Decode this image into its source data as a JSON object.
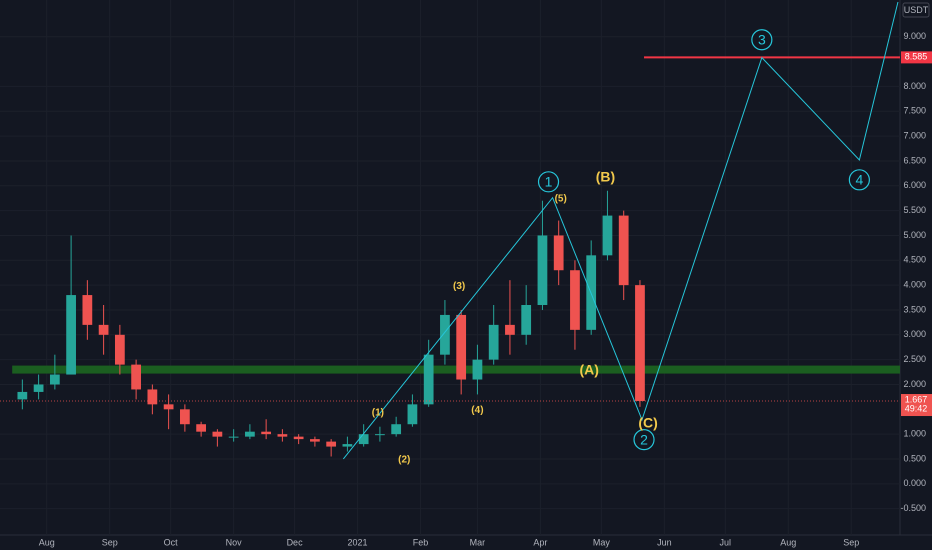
{
  "chart_data": {
    "type": "candlestick",
    "unit": "USDT",
    "up_color": "#26a69a",
    "down_color": "#ef5350",
    "grid": true,
    "xlim": [
      -23,
      420
    ],
    "ylim": [
      -1.03,
      9.74
    ],
    "xticks": [
      {
        "value": 0,
        "label": "Aug"
      },
      {
        "value": 31,
        "label": "Sep"
      },
      {
        "value": 61,
        "label": "Oct"
      },
      {
        "value": 92,
        "label": "Nov"
      },
      {
        "value": 122,
        "label": "Dec"
      },
      {
        "value": 153,
        "label": "2021"
      },
      {
        "value": 184,
        "label": "Feb"
      },
      {
        "value": 212,
        "label": "Mar"
      },
      {
        "value": 243,
        "label": "Apr"
      },
      {
        "value": 273,
        "label": "May"
      },
      {
        "value": 304,
        "label": "Jun"
      },
      {
        "value": 334,
        "label": "Jul"
      },
      {
        "value": 365,
        "label": "Aug"
      },
      {
        "value": 396,
        "label": "Sep"
      }
    ],
    "yticks": [
      {
        "value": 9,
        "label": "9.000"
      },
      {
        "value": 8,
        "label": "8.000"
      },
      {
        "value": 7.5,
        "label": "7.500"
      },
      {
        "value": 7,
        "label": "7.000"
      },
      {
        "value": 6.5,
        "label": "6.500"
      },
      {
        "value": 6,
        "label": "6.000"
      },
      {
        "value": 5.5,
        "label": "5.500"
      },
      {
        "value": 5,
        "label": "5.000"
      },
      {
        "value": 4.5,
        "label": "4.500"
      },
      {
        "value": 4,
        "label": "4.000"
      },
      {
        "value": 3.5,
        "label": "3.500"
      },
      {
        "value": 3,
        "label": "3.000"
      },
      {
        "value": 2.5,
        "label": "2.500"
      },
      {
        "value": 2,
        "label": "2.000"
      },
      {
        "value": 1,
        "label": "1.000"
      },
      {
        "value": 0.5,
        "label": "0.500"
      },
      {
        "value": 0,
        "label": "0.000"
      },
      {
        "value": -0.5,
        "label": "-0.500"
      }
    ],
    "x": [
      -12,
      -4,
      4,
      12,
      20,
      28,
      36,
      44,
      52,
      60,
      68,
      76,
      84,
      92,
      100,
      108,
      116,
      124,
      132,
      140,
      148,
      156,
      164,
      172,
      180,
      188,
      196,
      204,
      212,
      220,
      228,
      236,
      244,
      252,
      260,
      268,
      276,
      284,
      292
    ],
    "open": [
      1.7,
      1.85,
      2.0,
      2.2,
      3.8,
      3.2,
      3.0,
      2.4,
      1.9,
      1.6,
      1.5,
      1.2,
      1.05,
      0.95,
      0.95,
      1.05,
      1.0,
      0.95,
      0.9,
      0.85,
      0.75,
      0.8,
      1.0,
      1.0,
      1.2,
      1.6,
      2.6,
      3.4,
      2.1,
      2.5,
      3.2,
      3.0,
      3.6,
      5.0,
      4.3,
      3.1,
      4.6,
      5.4,
      4.0
    ],
    "high": [
      2.1,
      2.2,
      2.6,
      5.0,
      4.1,
      3.6,
      3.2,
      2.5,
      2.0,
      1.8,
      1.6,
      1.25,
      1.1,
      1.1,
      1.2,
      1.3,
      1.1,
      1.0,
      0.95,
      0.9,
      0.95,
      1.2,
      1.15,
      1.35,
      1.8,
      2.9,
      3.7,
      3.5,
      2.8,
      3.6,
      4.1,
      4.0,
      5.7,
      5.3,
      4.5,
      4.9,
      5.9,
      5.5,
      4.1
    ],
    "low": [
      1.5,
      1.7,
      1.9,
      2.2,
      2.9,
      2.6,
      2.2,
      1.7,
      1.4,
      1.1,
      1.05,
      0.95,
      0.75,
      0.85,
      0.9,
      0.9,
      0.85,
      0.8,
      0.75,
      0.55,
      0.65,
      0.75,
      0.85,
      0.95,
      1.15,
      1.55,
      2.4,
      1.8,
      1.8,
      2.4,
      2.6,
      2.8,
      3.5,
      4.0,
      2.7,
      3.0,
      4.5,
      3.7,
      1.55
    ],
    "close": [
      1.85,
      2.0,
      2.2,
      3.8,
      3.2,
      3.0,
      2.4,
      1.9,
      1.6,
      1.5,
      1.2,
      1.05,
      0.95,
      0.95,
      1.05,
      1.0,
      0.95,
      0.9,
      0.85,
      0.75,
      0.8,
      1.0,
      1.0,
      1.2,
      1.6,
      2.6,
      3.4,
      2.1,
      2.5,
      3.2,
      3.0,
      3.6,
      5.0,
      4.3,
      3.1,
      4.6,
      5.4,
      4.0,
      1.667
    ],
    "last_price": 1.667,
    "countdown": "49:42",
    "support": {
      "value": 2.3,
      "color": "#1b5e20",
      "x_start": -17
    },
    "resistance": {
      "value": 8.585,
      "color": "#f23645",
      "x_start": 294
    },
    "wave": {
      "color": "#26c6da",
      "x": [
        146,
        249,
        293,
        352,
        400,
        419
      ],
      "y": [
        0.5,
        5.76,
        1.29,
        8.58,
        6.52,
        9.7
      ]
    },
    "labels": [
      {
        "text": "1",
        "kind": "circle",
        "x": 247,
        "y": 6.08
      },
      {
        "text": "2",
        "kind": "circle",
        "x": 294,
        "y": 0.89
      },
      {
        "text": "3",
        "kind": "circle",
        "x": 352,
        "y": 8.94
      },
      {
        "text": "4",
        "kind": "circle",
        "x": 400,
        "y": 6.12
      },
      {
        "text": "(1)",
        "kind": "minor",
        "x": 163,
        "y": 1.45
      },
      {
        "text": "(2)",
        "kind": "minor",
        "x": 176,
        "y": 0.5
      },
      {
        "text": "(3)",
        "kind": "minor",
        "x": 203,
        "y": 4.0
      },
      {
        "text": "(4)",
        "kind": "minor",
        "x": 212,
        "y": 1.5
      },
      {
        "text": "(5)",
        "kind": "minor",
        "x": 253,
        "y": 5.76
      },
      {
        "text": "(A)",
        "kind": "major",
        "x": 267,
        "y": 2.3
      },
      {
        "text": "(B)",
        "kind": "major",
        "x": 275,
        "y": 6.18
      },
      {
        "text": "(C)",
        "kind": "major",
        "x": 296,
        "y": 1.23
      }
    ]
  }
}
